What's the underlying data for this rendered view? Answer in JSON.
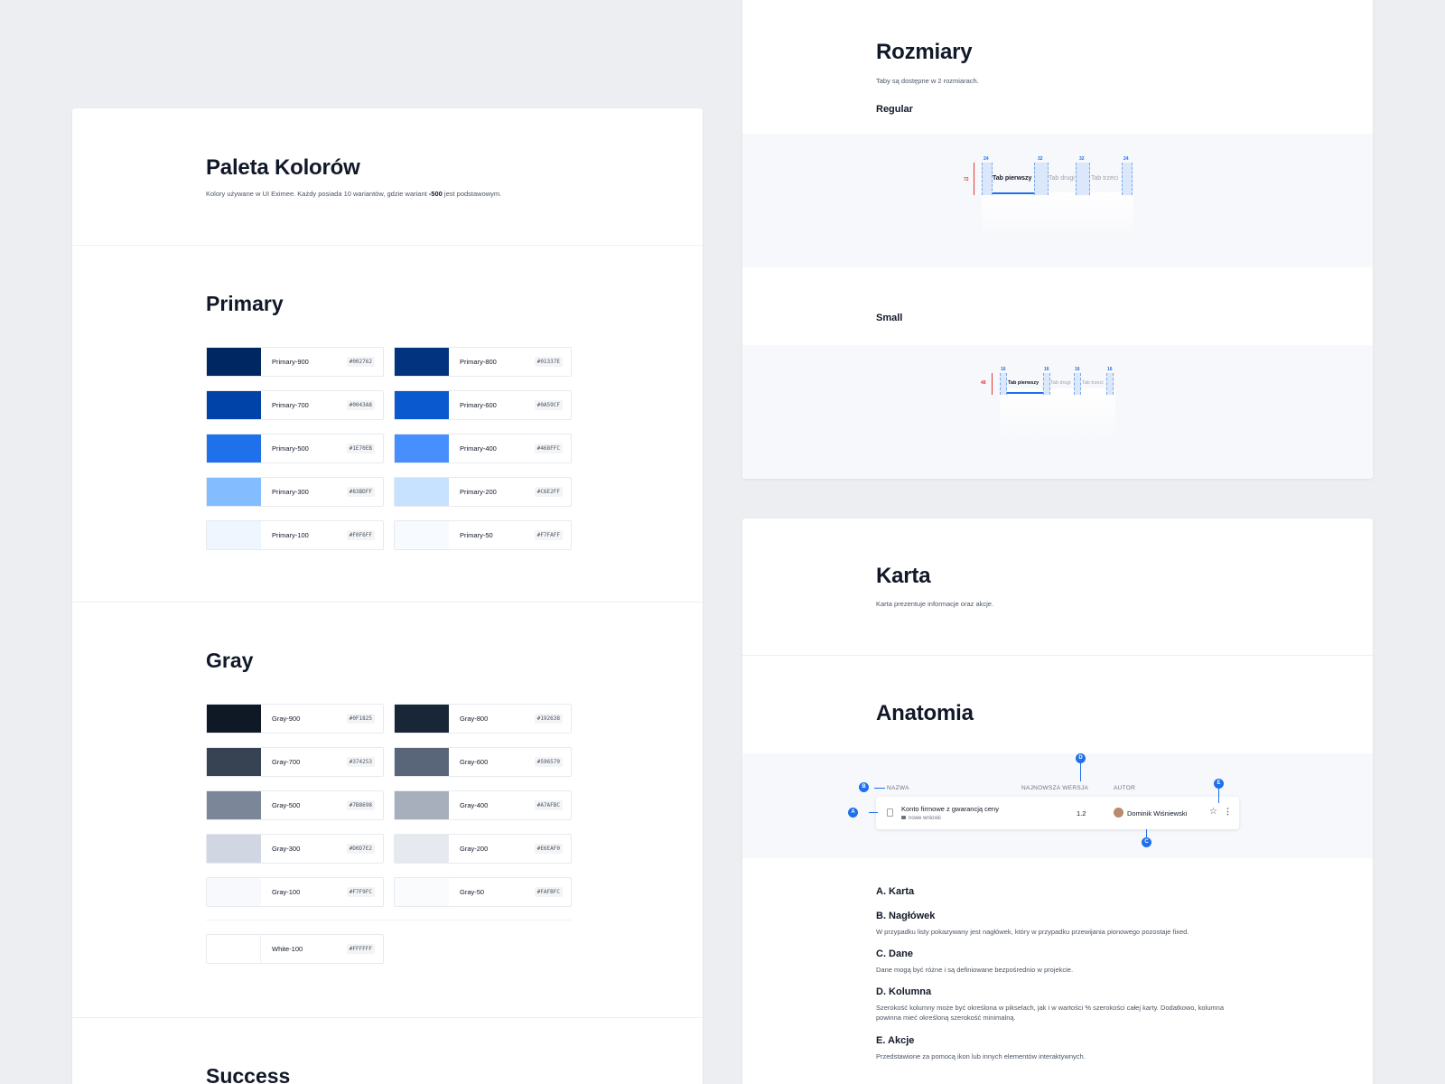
{
  "palette": {
    "title": "Paleta Kolorów",
    "subtitle_pre": "Kolory używane w UI Eximee. Każdy posiada 10 wariantów, gdzie wariant ",
    "subtitle_bold": "-500",
    "subtitle_post": " jest podstawowym."
  },
  "primary": {
    "title": "Primary",
    "swatches": [
      {
        "name": "Primary-900",
        "hex": "#002762",
        "color": "#002762"
      },
      {
        "name": "Primary-800",
        "hex": "#01337E",
        "color": "#01337E"
      },
      {
        "name": "Primary-700",
        "hex": "#0043A8",
        "color": "#0043A8"
      },
      {
        "name": "Primary-600",
        "hex": "#0A59CF",
        "color": "#0A59CF"
      },
      {
        "name": "Primary-500",
        "hex": "#1E70EB",
        "color": "#1E70EB"
      },
      {
        "name": "Primary-400",
        "hex": "#468FFC",
        "color": "#468FFC"
      },
      {
        "name": "Primary-300",
        "hex": "#83BDFF",
        "color": "#83BDFF"
      },
      {
        "name": "Primary-200",
        "hex": "#C6E2FF",
        "color": "#C6E2FF"
      },
      {
        "name": "Primary-100",
        "hex": "#F0F6FF",
        "color": "#F0F6FF"
      },
      {
        "name": "Primary-50",
        "hex": "#F7FAFF",
        "color": "#F7FAFF"
      }
    ]
  },
  "gray": {
    "title": "Gray",
    "swatches": [
      {
        "name": "Gray-900",
        "hex": "#0F1825",
        "color": "#0F1825"
      },
      {
        "name": "Gray-800",
        "hex": "#192638",
        "color": "#192638"
      },
      {
        "name": "Gray-700",
        "hex": "#374253",
        "color": "#374253"
      },
      {
        "name": "Gray-600",
        "hex": "#596579",
        "color": "#596579"
      },
      {
        "name": "Gray-500",
        "hex": "#7B8698",
        "color": "#7B8698"
      },
      {
        "name": "Gray-400",
        "hex": "#A7AFBC",
        "color": "#A7AFBC"
      },
      {
        "name": "Gray-300",
        "hex": "#D0D7E2",
        "color": "#D0D7E2"
      },
      {
        "name": "Gray-200",
        "hex": "#E6EAF0",
        "color": "#E6EAF0"
      },
      {
        "name": "Gray-100",
        "hex": "#F7F9FC",
        "color": "#F7F9FC"
      },
      {
        "name": "Gray-50",
        "hex": "#FAFBFC",
        "color": "#FAFBFC"
      }
    ],
    "white": {
      "name": "White-100",
      "hex": "#FFFFFF",
      "color": "#FFFFFF"
    }
  },
  "success": {
    "title": "Success"
  },
  "sizes": {
    "title": "Rozmiary",
    "subtitle": "Taby są dostępne w 2 rozmiarach.",
    "regular": {
      "label": "Regular",
      "tabs": [
        "Tab pierwszy",
        "Tab drugi",
        "Tab trzeci"
      ],
      "paddings": [
        "24",
        "32",
        "32",
        "24"
      ],
      "height": "72"
    },
    "small": {
      "label": "Small",
      "tabs": [
        "Tab pierwszy",
        "Tab drugi",
        "Tab trzeci"
      ],
      "paddings": [
        "16",
        "16",
        "16",
        "16"
      ],
      "height": "48"
    }
  },
  "card": {
    "title": "Karta",
    "subtitle": "Karta prezentuje informacje oraz akcje."
  },
  "anatomy": {
    "title": "Anatomia",
    "columns": {
      "name": "NAZWA",
      "version": "NAJNOWSZA WERSJA",
      "author": "AUTOR"
    },
    "row": {
      "title": "Konto firmowe z gwarancją ceny",
      "tag": "nowe wnioski",
      "version": "1.2",
      "author": "Dominik Wiśniewski"
    },
    "markers": [
      "A",
      "B",
      "C",
      "D",
      "E"
    ],
    "definitions": [
      {
        "title": "A. Karta",
        "text": ""
      },
      {
        "title": "B. Nagłówek",
        "text": "W przypadku listy pokazywany jest nagłówek, który w przypadku przewijania pionowego pozostaje fixed."
      },
      {
        "title": "C. Dane",
        "text": "Dane mogą być różne i są definiowane bezpośrednio w projekcie."
      },
      {
        "title": "D. Kolumna",
        "text": "Szerokość kolumny może być określona w pikselach, jak i w wartości % szerokości całej karty. Dodatkowo, kolumna powinna mieć określoną szerokość minimalną."
      },
      {
        "title": "E. Akcje",
        "text": "Przedstawione za pomocą ikon lub innych elementów interaktywnych."
      }
    ]
  }
}
